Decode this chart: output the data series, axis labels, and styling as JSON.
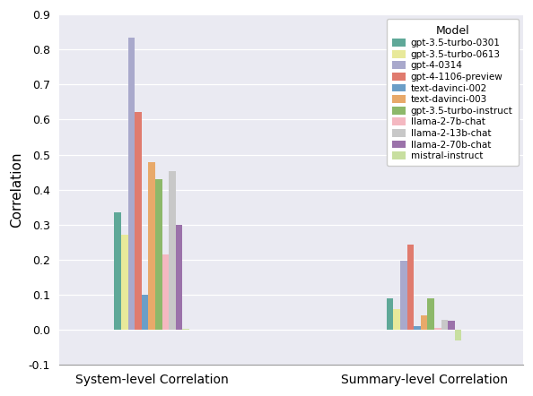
{
  "categories": [
    "System-level Correlation",
    "Summary-level Correlation"
  ],
  "models": [
    "gpt-3.5-turbo-0301",
    "gpt-3.5-turbo-0613",
    "gpt-4-0314",
    "gpt-4-1106-preview",
    "text-davinci-002",
    "text-davinci-003",
    "gpt-3.5-turbo-instruct",
    "llama-2-7b-chat",
    "llama-2-13b-chat",
    "llama-2-70b-chat",
    "mistral-instruct"
  ],
  "colors": [
    "#5fa898",
    "#e8e99a",
    "#a9a9cc",
    "#e07b6e",
    "#6b9ec7",
    "#e8a96a",
    "#8db86a",
    "#f4b8c1",
    "#c8c8c8",
    "#9b72aa",
    "#c8dfa0"
  ],
  "system_level": [
    0.335,
    0.27,
    0.833,
    0.621,
    0.1,
    0.478,
    0.43,
    0.215,
    0.453,
    0.3,
    0.003
  ],
  "summary_level": [
    0.09,
    0.06,
    0.197,
    0.243,
    0.01,
    0.04,
    0.09,
    0.005,
    0.028,
    0.025,
    -0.03
  ],
  "ylim": [
    -0.1,
    0.9
  ],
  "yticks": [
    -0.1,
    0.0,
    0.1,
    0.2,
    0.3,
    0.4,
    0.5,
    0.6,
    0.7,
    0.8,
    0.9
  ],
  "ylabel": "Correlation",
  "legend_title": "Model",
  "background_color": "#eaeaf2",
  "figure_background": "#ffffff",
  "grid_color": "#ffffff",
  "bar_width": 0.055,
  "group_positions": [
    1.0,
    3.2
  ],
  "xlim": [
    0.25,
    4.0
  ]
}
